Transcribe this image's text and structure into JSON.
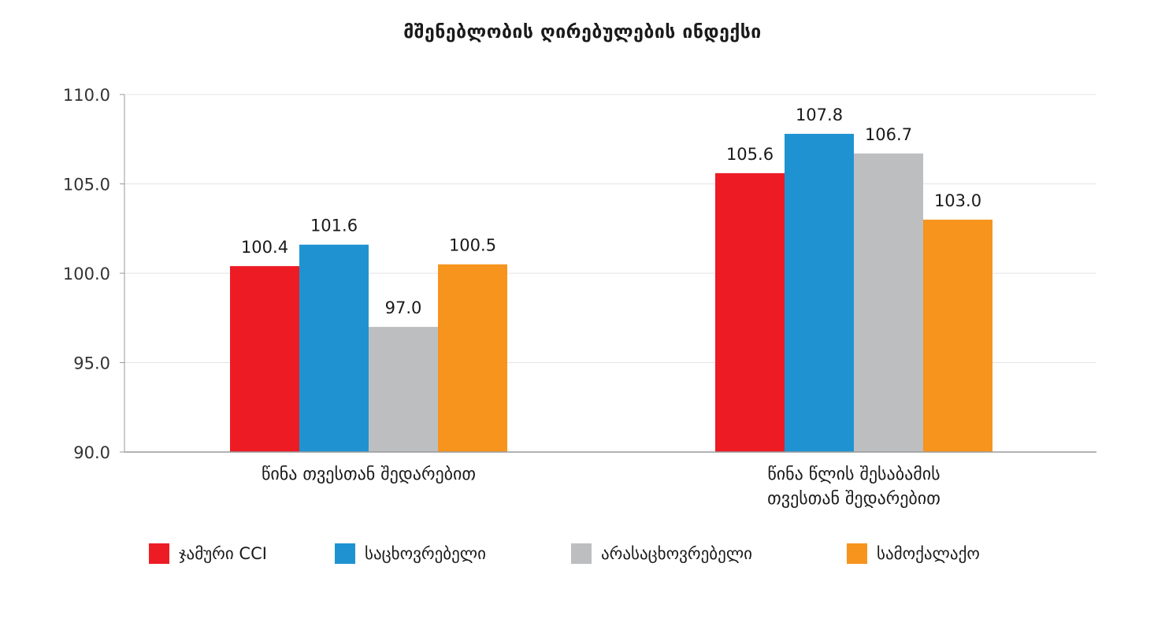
{
  "chart_data": {
    "type": "bar",
    "title": "მშენებლობის ღირებულების ინდექსი",
    "categories": [
      [
        "წინა თვესთან შედარებით"
      ],
      [
        "წინა წლის შესაბამის",
        "თვესთან შედარებით"
      ]
    ],
    "series": [
      {
        "name": "ჯამური CCI",
        "color": "#ed1c24",
        "values": [
          100.4,
          105.6
        ]
      },
      {
        "name": "საცხოვრებელი",
        "color": "#1f93d2",
        "values": [
          101.6,
          107.8
        ]
      },
      {
        "name": "არასაცხოვრებელი",
        "color": "#bdbebf",
        "values": [
          97.0,
          106.7
        ]
      },
      {
        "name": "სამოქალაქო",
        "color": "#f7941d",
        "values": [
          100.5,
          103.0
        ]
      }
    ],
    "ylim": [
      90,
      110
    ],
    "yticks": [
      "90.0",
      "95.0",
      "100.0",
      "105.0",
      "110.0"
    ],
    "value_labels": [
      [
        "100.4",
        "105.6"
      ],
      [
        "101.6",
        "107.8"
      ],
      [
        "97.0",
        "106.7"
      ],
      [
        "100.5",
        "103.0"
      ]
    ],
    "grid": true,
    "legend_position": "bottom",
    "xlabel": "",
    "ylabel": ""
  }
}
